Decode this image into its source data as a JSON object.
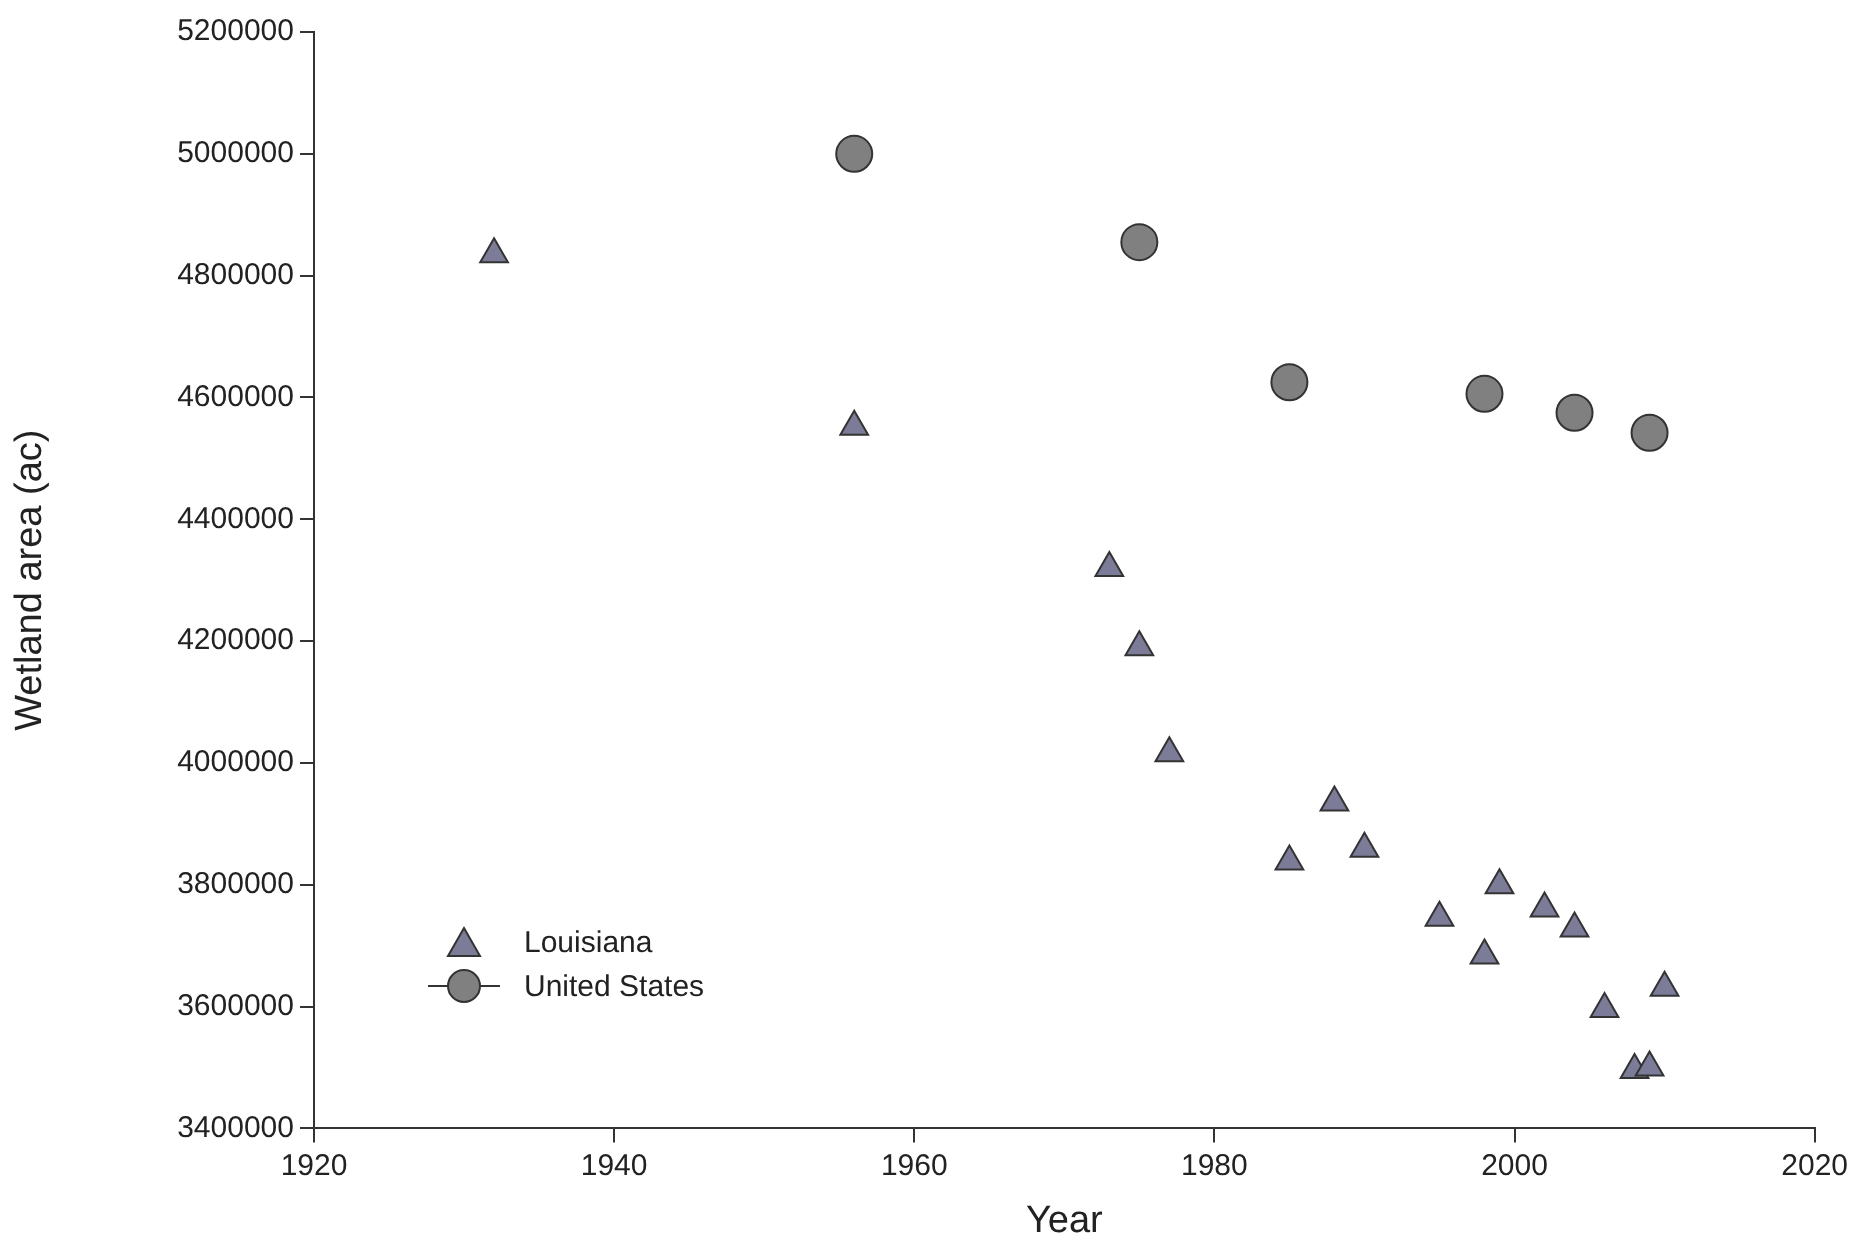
{
  "chart_data": {
    "type": "scatter",
    "xlabel": "Year",
    "ylabel": "Wetland area (ac)",
    "xlim": [
      1920,
      2020
    ],
    "xticks": [
      1920,
      1940,
      1960,
      1980,
      2000,
      2020
    ],
    "ylim": [
      3400000,
      5200000
    ],
    "yticks": [
      3400000,
      3600000,
      3800000,
      4000000,
      4200000,
      4400000,
      4600000,
      4800000,
      5000000,
      5200000
    ],
    "grid": false,
    "legend": "bottom left",
    "series": [
      {
        "name": "Louisiana",
        "color": "#7c7c98",
        "marker": "triangle",
        "x": [
          1932,
          1956,
          1973,
          1975,
          1977,
          1985,
          1988,
          1990,
          1995,
          1998,
          1999,
          2002,
          2004,
          2006,
          2008,
          2009,
          2010
        ],
        "values": [
          4835000,
          4552000,
          4320000,
          4190000,
          4016000,
          3838000,
          3935000,
          3859000,
          3746000,
          3684000,
          3799000,
          3761000,
          3728000,
          3596000,
          3496000,
          3500000,
          3631000
        ]
      },
      {
        "name": "United States",
        "color": "#808080",
        "marker": "circle",
        "x": [
          1956,
          1975,
          1985,
          1998,
          2004,
          2009
        ],
        "values": [
          5000000,
          4855000,
          4625000,
          4606000,
          4575000,
          4542000
        ]
      }
    ]
  }
}
